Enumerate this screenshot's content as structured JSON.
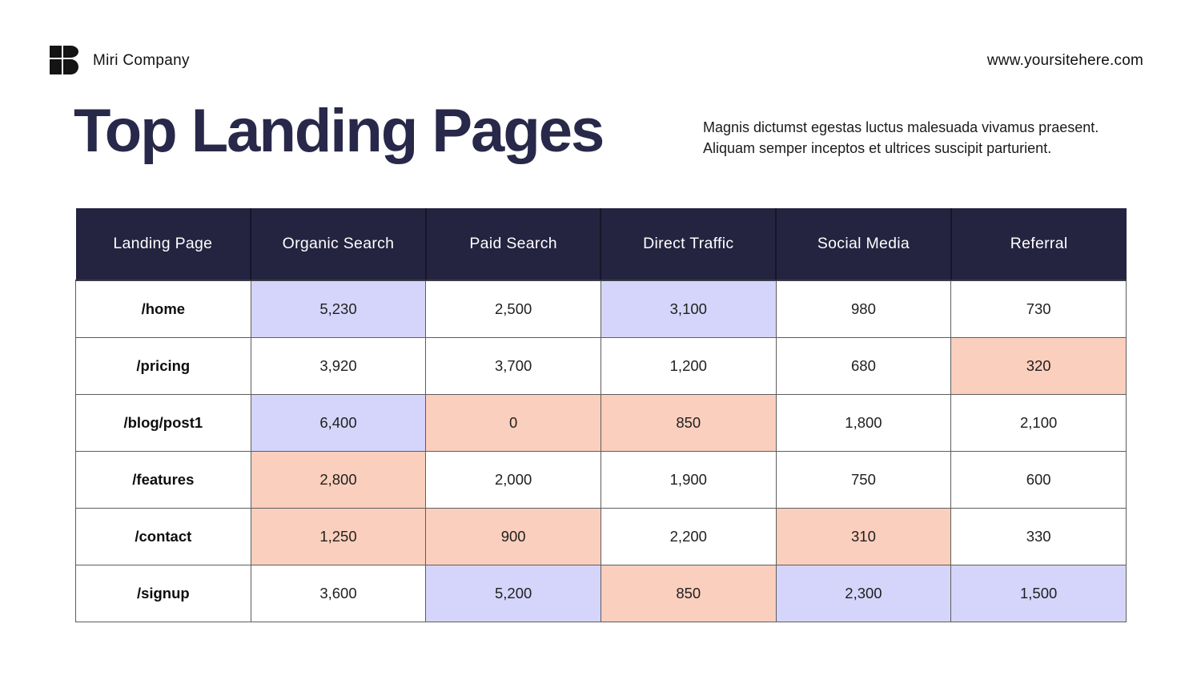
{
  "brand": {
    "name": "Miri Company"
  },
  "website": "www.yoursitehere.com",
  "header": {
    "title": "Top Landing Pages",
    "description_line1": "Magnis dictumst egestas luctus malesuada vivamus praesent.",
    "description_line2": "Aliquam semper inceptos et ultrices suscipit parturient."
  },
  "colors": {
    "header_navy": "#242340",
    "title_navy": "#28284a",
    "highlight_lavender": "#d5d5fb",
    "highlight_peach": "#fbcfbd",
    "grid_line": "#5d5d5d"
  },
  "chart_data": {
    "type": "table",
    "title": "Top Landing Pages",
    "columns": [
      "Landing Page",
      "Organic Search",
      "Paid Search",
      "Direct Traffic",
      "Social Media",
      "Referral"
    ],
    "rows": [
      {
        "label": "/home",
        "cells": [
          {
            "value": "5,230",
            "highlight": "lavender"
          },
          {
            "value": "2,500",
            "highlight": "none"
          },
          {
            "value": "3,100",
            "highlight": "lavender"
          },
          {
            "value": "980",
            "highlight": "none"
          },
          {
            "value": "730",
            "highlight": "none"
          }
        ]
      },
      {
        "label": "/pricing",
        "cells": [
          {
            "value": "3,920",
            "highlight": "none"
          },
          {
            "value": "3,700",
            "highlight": "none"
          },
          {
            "value": "1,200",
            "highlight": "none"
          },
          {
            "value": "680",
            "highlight": "none"
          },
          {
            "value": "320",
            "highlight": "peach"
          }
        ]
      },
      {
        "label": "/blog/post1",
        "cells": [
          {
            "value": "6,400",
            "highlight": "lavender"
          },
          {
            "value": "0",
            "highlight": "peach"
          },
          {
            "value": "850",
            "highlight": "peach"
          },
          {
            "value": "1,800",
            "highlight": "none"
          },
          {
            "value": "2,100",
            "highlight": "none"
          }
        ]
      },
      {
        "label": "/features",
        "cells": [
          {
            "value": "2,800",
            "highlight": "peach"
          },
          {
            "value": "2,000",
            "highlight": "none"
          },
          {
            "value": "1,900",
            "highlight": "none"
          },
          {
            "value": "750",
            "highlight": "none"
          },
          {
            "value": "600",
            "highlight": "none"
          }
        ]
      },
      {
        "label": "/contact",
        "cells": [
          {
            "value": "1,250",
            "highlight": "peach"
          },
          {
            "value": "900",
            "highlight": "peach"
          },
          {
            "value": "2,200",
            "highlight": "none"
          },
          {
            "value": "310",
            "highlight": "peach"
          },
          {
            "value": "330",
            "highlight": "none"
          }
        ]
      },
      {
        "label": "/signup",
        "cells": [
          {
            "value": "3,600",
            "highlight": "none"
          },
          {
            "value": "5,200",
            "highlight": "lavender"
          },
          {
            "value": "850",
            "highlight": "peach"
          },
          {
            "value": "2,300",
            "highlight": "lavender"
          },
          {
            "value": "1,500",
            "highlight": "lavender"
          }
        ]
      }
    ]
  }
}
